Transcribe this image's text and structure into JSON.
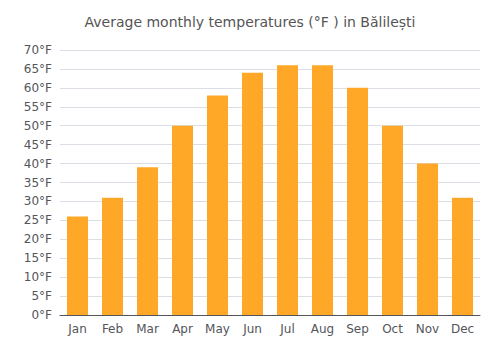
{
  "chart_data": {
    "type": "bar",
    "title": "Average monthly temperatures (°F ) in Bălilești",
    "categories": [
      "Jan",
      "Feb",
      "Mar",
      "Apr",
      "May",
      "Jun",
      "Jul",
      "Aug",
      "Sep",
      "Oct",
      "Nov",
      "Dec"
    ],
    "values": [
      26,
      31,
      39,
      50,
      58,
      64,
      66,
      66,
      60,
      50,
      40,
      31
    ],
    "color": "#FFA726",
    "ylim": [
      0,
      70
    ],
    "yticks": [
      {
        "value": 0,
        "label": "0°F"
      },
      {
        "value": 5,
        "label": "5°F"
      },
      {
        "value": 10,
        "label": "10°F"
      },
      {
        "value": 15,
        "label": "15°F"
      },
      {
        "value": 20,
        "label": "20°F"
      },
      {
        "value": 25,
        "label": "25°F"
      },
      {
        "value": 30,
        "label": "30°F"
      },
      {
        "value": 35,
        "label": "35°F"
      },
      {
        "value": 40,
        "label": "40°F"
      },
      {
        "value": 45,
        "label": "45°F"
      },
      {
        "value": 50,
        "label": "50°F"
      },
      {
        "value": 55,
        "label": "55°F"
      },
      {
        "value": 60,
        "label": "60°F"
      },
      {
        "value": 65,
        "label": "65°F"
      },
      {
        "value": 70,
        "label": "70°F"
      }
    ],
    "grid": true
  }
}
